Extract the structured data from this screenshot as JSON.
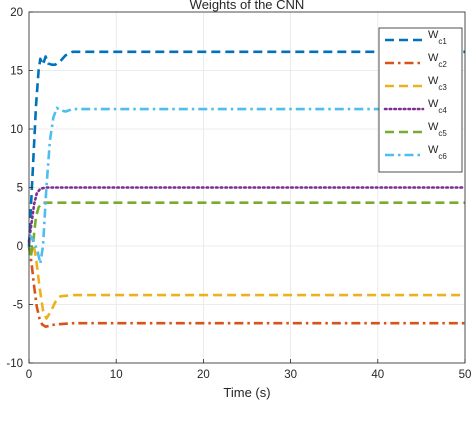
{
  "chart_data": {
    "type": "line",
    "title": "Weights of the CNN",
    "xlabel": "Time (s)",
    "ylabel": "",
    "xlim": [
      0,
      50
    ],
    "ylim": [
      -10,
      20
    ],
    "xticks": [
      0,
      10,
      20,
      30,
      40,
      50
    ],
    "yticks": [
      -10,
      -5,
      0,
      5,
      10,
      15,
      20
    ],
    "grid": true,
    "legend_position": "top-right",
    "series": [
      {
        "name": "W",
        "sub": "c1",
        "color": "#0072BD",
        "dash": "dash",
        "points": [
          [
            0,
            0
          ],
          [
            0.4,
            6
          ],
          [
            0.8,
            12
          ],
          [
            1.1,
            15
          ],
          [
            1.3,
            16
          ],
          [
            1.6,
            15.5
          ],
          [
            1.9,
            16.2
          ],
          [
            2.2,
            15.6
          ],
          [
            2.6,
            15.5
          ],
          [
            3.0,
            15.5
          ],
          [
            3.6,
            15.8
          ],
          [
            4.2,
            16.3
          ],
          [
            5,
            16.6
          ],
          [
            50,
            16.6
          ]
        ]
      },
      {
        "name": "W",
        "sub": "c2",
        "color": "#D95319",
        "dash": "dashdot",
        "points": [
          [
            0,
            0
          ],
          [
            0.3,
            -1.5
          ],
          [
            0.6,
            -3.5
          ],
          [
            0.9,
            -5.2
          ],
          [
            1.2,
            -6.2
          ],
          [
            1.5,
            -6.7
          ],
          [
            1.9,
            -6.9
          ],
          [
            2.4,
            -6.8
          ],
          [
            3.0,
            -6.7
          ],
          [
            5,
            -6.6
          ],
          [
            50,
            -6.6
          ]
        ]
      },
      {
        "name": "W",
        "sub": "c3",
        "color": "#EDB120",
        "dash": "dash",
        "points": [
          [
            0,
            1
          ],
          [
            0.4,
            0.6
          ],
          [
            0.8,
            -1
          ],
          [
            1.2,
            -3.5
          ],
          [
            1.6,
            -5.5
          ],
          [
            2.0,
            -6.2
          ],
          [
            2.5,
            -5.6
          ],
          [
            3.0,
            -4.8
          ],
          [
            3.6,
            -4.3
          ],
          [
            5,
            -4.2
          ],
          [
            50,
            -4.2
          ]
        ]
      },
      {
        "name": "W",
        "sub": "c4",
        "color": "#7E2F8E",
        "dash": "dot",
        "points": [
          [
            0,
            0.4
          ],
          [
            0.3,
            2
          ],
          [
            0.6,
            3.6
          ],
          [
            0.9,
            4.5
          ],
          [
            1.3,
            4.9
          ],
          [
            2,
            5
          ],
          [
            50,
            5
          ]
        ]
      },
      {
        "name": "W",
        "sub": "c5",
        "color": "#77AC30",
        "dash": "dash",
        "points": [
          [
            0,
            0
          ],
          [
            0.2,
            -1
          ],
          [
            0.5,
            0.5
          ],
          [
            0.8,
            2.5
          ],
          [
            1.1,
            3.3
          ],
          [
            1.5,
            3.7
          ],
          [
            2,
            3.7
          ],
          [
            50,
            3.7
          ]
        ]
      },
      {
        "name": "W",
        "sub": "c6",
        "color": "#4DBEEE",
        "dash": "dashdot",
        "points": [
          [
            0,
            1
          ],
          [
            0.5,
            0.5
          ],
          [
            1.0,
            -0.5
          ],
          [
            1.3,
            -1.5
          ],
          [
            1.6,
            0
          ],
          [
            2.0,
            5
          ],
          [
            2.4,
            9
          ],
          [
            2.8,
            11
          ],
          [
            3.2,
            11.8
          ],
          [
            3.6,
            11.6
          ],
          [
            4.2,
            11.5
          ],
          [
            5,
            11.7
          ],
          [
            50,
            11.7
          ]
        ]
      }
    ]
  }
}
